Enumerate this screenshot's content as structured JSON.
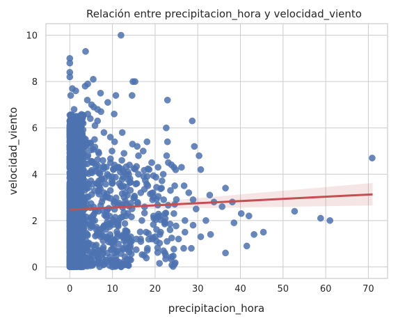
{
  "chart_data": {
    "type": "scatter",
    "title": "Relación entre precipitacion_hora y velocidad_viento",
    "xlabel": "precipitacion_hora",
    "ylabel": "velocidad_viento",
    "xlim": [
      -5.6,
      74.5
    ],
    "ylim": [
      -0.5,
      10.5
    ],
    "xticks": [
      0,
      10,
      20,
      30,
      40,
      50,
      60,
      70
    ],
    "yticks": [
      0,
      2,
      4,
      6,
      8,
      10
    ],
    "grid": true,
    "colors": {
      "points": "#4c72b0",
      "regression_line": "#c44e52",
      "confidence_band": "#c44e52"
    },
    "regression": {
      "x": [
        0,
        71
      ],
      "y": [
        2.47,
        3.13
      ],
      "ci_lower_end": 2.65,
      "ci_upper_end": 3.62
    },
    "points": [
      [
        12,
        10.0
      ],
      [
        3.7,
        9.3
      ],
      [
        0,
        9.0
      ],
      [
        0,
        8.8
      ],
      [
        0,
        8.4
      ],
      [
        0,
        8.2
      ],
      [
        5.5,
        8.1
      ],
      [
        14.8,
        8.0
      ],
      [
        15.3,
        8.0
      ],
      [
        4.2,
        7.9
      ],
      [
        3.6,
        7.8
      ],
      [
        0.6,
        7.7
      ],
      [
        1.4,
        7.6
      ],
      [
        7.2,
        7.5
      ],
      [
        0.2,
        7.4
      ],
      [
        10.8,
        7.4
      ],
      [
        14.6,
        7.4
      ],
      [
        4.1,
        7.2
      ],
      [
        22.9,
        7.2
      ],
      [
        5.1,
        7.0
      ],
      [
        8.9,
        7.1
      ],
      [
        5.6,
        6.9
      ],
      [
        1.0,
        6.8
      ],
      [
        6.5,
        6.8
      ],
      [
        7.3,
        6.7
      ],
      [
        4.2,
        6.6
      ],
      [
        10.4,
        6.6
      ],
      [
        2.0,
        6.4
      ],
      [
        4.8,
        6.4
      ],
      [
        6.5,
        6.3
      ],
      [
        28.7,
        6.3
      ],
      [
        1.4,
        6.2
      ],
      [
        5.9,
        6.1
      ],
      [
        1.1,
        6.0
      ],
      [
        22.6,
        6.0
      ],
      [
        9.5,
        5.6
      ],
      [
        5.8,
        5.5
      ],
      [
        8.0,
        5.8
      ],
      [
        12.3,
        5.8
      ],
      [
        10.5,
        5.4
      ],
      [
        14.7,
        5.3
      ],
      [
        15.8,
        5.2
      ],
      [
        18.1,
        5.4
      ],
      [
        22.9,
        5.4
      ],
      [
        29.2,
        5.2
      ],
      [
        9.9,
        5.0
      ],
      [
        12.7,
        4.9
      ],
      [
        16.1,
        4.8
      ],
      [
        17.2,
        5.0
      ],
      [
        22.7,
        4.8
      ],
      [
        6.8,
        4.9
      ],
      [
        2.5,
        5.1
      ],
      [
        30.3,
        4.8
      ],
      [
        12.2,
        4.6
      ],
      [
        14.0,
        4.4
      ],
      [
        19.2,
        4.5
      ],
      [
        23.1,
        4.5
      ],
      [
        26.2,
        4.3
      ],
      [
        30.7,
        4.2
      ],
      [
        11.5,
        4.3
      ],
      [
        18.6,
        4.2
      ],
      [
        20.7,
        4.3
      ],
      [
        21.9,
        4.0
      ],
      [
        16.1,
        4.0
      ],
      [
        13.6,
        4.1
      ],
      [
        17.3,
        3.9
      ],
      [
        24.4,
        4.3
      ],
      [
        8.8,
        4.0
      ],
      [
        26.8,
        3.5
      ],
      [
        21.5,
        3.4
      ],
      [
        24.6,
        3.5
      ],
      [
        18.3,
        3.5
      ],
      [
        15.7,
        3.6
      ],
      [
        11.6,
        3.6
      ],
      [
        36.5,
        3.4
      ],
      [
        32.8,
        3.1
      ],
      [
        23.6,
        3.3
      ],
      [
        19.5,
        3.2
      ],
      [
        15.2,
        3.0
      ],
      [
        27.9,
        3.2
      ],
      [
        13.0,
        3.2
      ],
      [
        9.5,
        3.3
      ],
      [
        19.4,
        2.9
      ],
      [
        22.0,
        2.9
      ],
      [
        24.6,
        2.7
      ],
      [
        28.9,
        2.9
      ],
      [
        33.8,
        2.8
      ],
      [
        38.1,
        2.8
      ],
      [
        35.7,
        2.6
      ],
      [
        29.6,
        2.5
      ],
      [
        52.7,
        2.4
      ],
      [
        40.2,
        2.3
      ],
      [
        42.0,
        2.2
      ],
      [
        58.8,
        2.1
      ],
      [
        61.0,
        2.0
      ],
      [
        70.9,
        4.7
      ],
      [
        38.5,
        1.9
      ],
      [
        31.9,
        2.0
      ],
      [
        27.0,
        2.0
      ],
      [
        24.4,
        2.3
      ],
      [
        22.3,
        1.9
      ],
      [
        19.7,
        2.1
      ],
      [
        16.9,
        2.0
      ],
      [
        13.2,
        2.2
      ],
      [
        11.3,
        1.8
      ],
      [
        17.9,
        1.5
      ],
      [
        21.3,
        1.5
      ],
      [
        23.5,
        1.6
      ],
      [
        27.0,
        1.5
      ],
      [
        28.9,
        1.8
      ],
      [
        33.0,
        1.4
      ],
      [
        43.2,
        1.4
      ],
      [
        45.4,
        1.5
      ],
      [
        41.5,
        0.9
      ],
      [
        30.7,
        1.3
      ],
      [
        25.5,
        1.2
      ],
      [
        22.8,
        1.1
      ],
      [
        19.3,
        1.2
      ],
      [
        16.6,
        1.2
      ],
      [
        14.3,
        1.3
      ],
      [
        12.6,
        1.4
      ],
      [
        9.0,
        1.2
      ],
      [
        14.1,
        0.8
      ],
      [
        18.2,
        0.8
      ],
      [
        22.3,
        0.6
      ],
      [
        22.5,
        0.5
      ],
      [
        26.7,
        0.8
      ],
      [
        28.5,
        0.8
      ],
      [
        36.5,
        0.6
      ],
      [
        10.5,
        0.6
      ],
      [
        14.3,
        0.3
      ],
      [
        11.6,
        0.2
      ],
      [
        8.0,
        0.1
      ],
      [
        6.2,
        0.6
      ],
      [
        5.0,
        0.3
      ],
      [
        3.0,
        0.2
      ],
      [
        2.0,
        0.7
      ],
      [
        4.0,
        1.0
      ],
      [
        7.0,
        1.5
      ],
      [
        6.0,
        2.4
      ],
      [
        8.0,
        3.2
      ],
      [
        7.5,
        3.8
      ],
      [
        5.5,
        4.5
      ],
      [
        3.5,
        5.2
      ],
      [
        2.3,
        5.8
      ],
      [
        1.5,
        6.5
      ]
    ]
  }
}
